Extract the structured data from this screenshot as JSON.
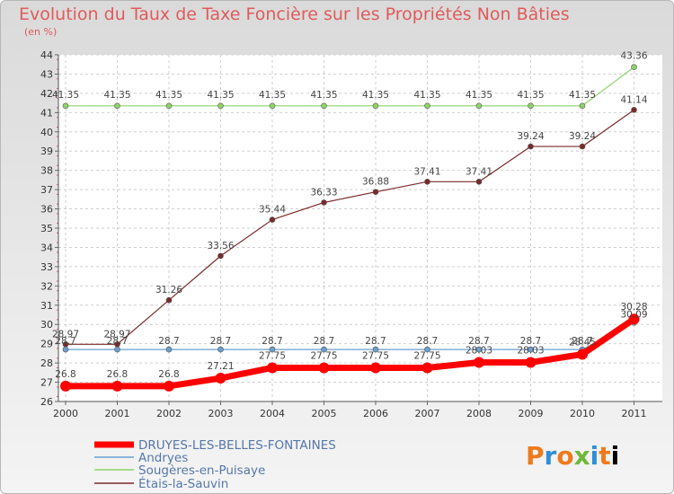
{
  "title": "Evolution du Taux de Taxe Foncière sur les Propriétés Non Bâties",
  "unit_label": "(en %)",
  "logo": "Proxiti",
  "chart_data": {
    "type": "line",
    "x": [
      "2000",
      "2001",
      "2002",
      "2003",
      "2004",
      "2005",
      "2006",
      "2007",
      "2008",
      "2009",
      "2010",
      "2011"
    ],
    "ylim": [
      26,
      44
    ],
    "yticks": [
      26,
      27,
      28,
      29,
      30,
      31,
      32,
      33,
      34,
      35,
      36,
      37,
      38,
      39,
      40,
      41,
      42,
      43,
      44
    ],
    "grid": true,
    "legend_position": "bottom-left",
    "series": [
      {
        "name": "DRUYES-LES-BELLES-FONTAINES",
        "color": "#ff0000",
        "values": [
          26.8,
          26.8,
          26.8,
          27.21,
          27.75,
          27.75,
          27.75,
          27.75,
          28.03,
          28.03,
          28.45,
          30.28
        ],
        "labels": [
          "26.8",
          "26.8",
          "26.8",
          "27.21",
          "27.75",
          "27.75",
          "27.75",
          "27.75",
          "28.03",
          "28.03",
          "28.45",
          "30.28"
        ]
      },
      {
        "name": "Andryes",
        "color": "#6a9fd0",
        "values": [
          28.7,
          28.7,
          28.7,
          28.7,
          28.7,
          28.7,
          28.7,
          28.7,
          28.7,
          28.7,
          28.7,
          30.09
        ],
        "labels": [
          "28.7",
          "28.7",
          "28.7",
          "28.7",
          "28.7",
          "28.7",
          "28.7",
          "28.7",
          "28.7",
          "28.7",
          "28.7",
          "30.09"
        ]
      },
      {
        "name": "Sougères-en-Puisaye",
        "color": "#8fd26a",
        "values": [
          41.35,
          41.35,
          41.35,
          41.35,
          41.35,
          41.35,
          41.35,
          41.35,
          41.35,
          41.35,
          41.35,
          43.36
        ],
        "labels": [
          "41.35",
          "41.35",
          "41.35",
          "41.35",
          "41.35",
          "41.35",
          "41.35",
          "41.35",
          "41.35",
          "41.35",
          "41.35",
          "43.36"
        ]
      },
      {
        "name": "Étais-la-Sauvin",
        "color": "#7a2a2a",
        "values": [
          28.97,
          28.97,
          31.26,
          33.56,
          35.44,
          36.33,
          36.88,
          37.41,
          37.41,
          39.24,
          39.24,
          41.14
        ],
        "labels": [
          "28.97",
          "28.97",
          "31.26",
          "33.56",
          "35.44",
          "36.33",
          "36.88",
          "37.41",
          "37.41",
          "39.24",
          "39.24",
          "41.14"
        ]
      }
    ]
  }
}
